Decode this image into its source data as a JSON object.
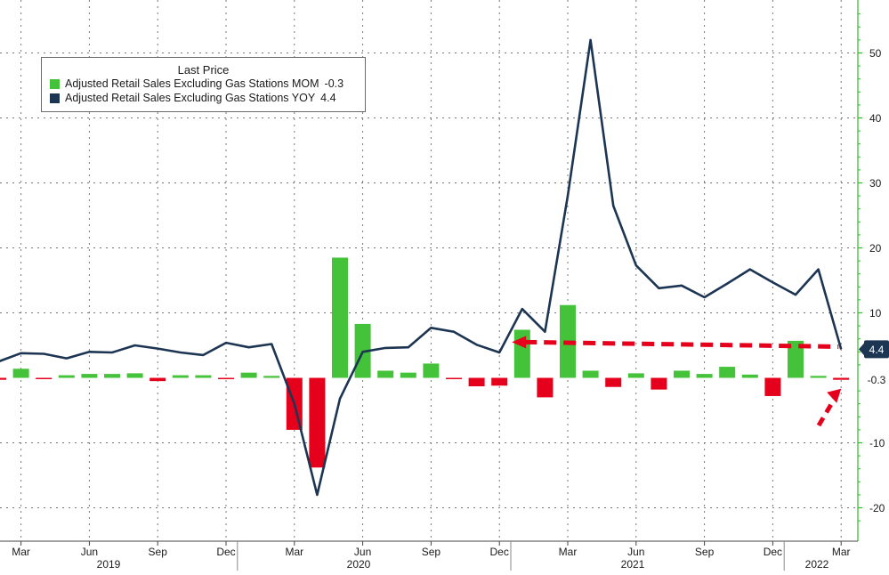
{
  "chart_data": {
    "type": "bar+line",
    "legend": {
      "title": "Last Price",
      "placement": "top-left"
    },
    "x": [
      "2019-02",
      "2019-03",
      "2019-04",
      "2019-05",
      "2019-06",
      "2019-07",
      "2019-08",
      "2019-09",
      "2019-10",
      "2019-11",
      "2019-12",
      "2020-01",
      "2020-02",
      "2020-03",
      "2020-04",
      "2020-05",
      "2020-06",
      "2020-07",
      "2020-08",
      "2020-09",
      "2020-10",
      "2020-11",
      "2020-12",
      "2021-01",
      "2021-02",
      "2021-03",
      "2021-04",
      "2021-05",
      "2021-06",
      "2021-07",
      "2021-08",
      "2021-09",
      "2021-10",
      "2021-11",
      "2021-12",
      "2022-01",
      "2022-02",
      "2022-03"
    ],
    "series": [
      {
        "name": "Adjusted Retail Sales Excluding Gas Stations MOM",
        "last": "-0.3",
        "type": "bar",
        "color_positive": "#44c23a",
        "color_negative": "#e5001b",
        "values": [
          -0.3,
          1.4,
          -0.2,
          0.4,
          0.6,
          0.6,
          0.7,
          -0.5,
          0.4,
          0.4,
          -0.1,
          0.8,
          0.3,
          -8.0,
          -13.8,
          18.5,
          8.3,
          1.1,
          0.8,
          2.2,
          -0.1,
          -1.3,
          -1.2,
          7.4,
          -3.0,
          11.2,
          1.1,
          -1.4,
          0.7,
          -1.8,
          1.1,
          0.6,
          1.7,
          0.5,
          -2.8,
          5.7,
          0.3,
          -0.3
        ]
      },
      {
        "name": "Adjusted Retail Sales Excluding Gas Stations YOY",
        "last": "4.4",
        "type": "line",
        "color": "#1c3553",
        "values": [
          2.5,
          3.8,
          3.7,
          3.0,
          4.0,
          3.9,
          5.0,
          4.5,
          3.9,
          3.5,
          5.4,
          4.7,
          5.2,
          -4.0,
          -18.0,
          -3.2,
          4.0,
          4.6,
          4.7,
          7.7,
          7.1,
          5.1,
          3.9,
          10.6,
          7.1,
          28.0,
          52.0,
          26.5,
          17.3,
          13.8,
          14.2,
          12.4,
          14.5,
          16.7,
          14.7,
          12.8,
          16.7,
          4.4
        ]
      }
    ],
    "x_tick_labels": [
      "Mar",
      "Jun",
      "Sep",
      "Dec",
      "Mar",
      "Jun",
      "Sep",
      "Dec",
      "Mar",
      "Jun",
      "Sep",
      "Dec",
      "Mar"
    ],
    "x_tick_months": [
      "2019-03",
      "2019-06",
      "2019-09",
      "2019-12",
      "2020-03",
      "2020-06",
      "2020-09",
      "2020-12",
      "2021-03",
      "2021-06",
      "2021-09",
      "2021-12",
      "2022-03"
    ],
    "year_labels": [
      "2019",
      "2020",
      "2021",
      "2022"
    ],
    "y_tick_labels": [
      "50",
      "40",
      "30",
      "20",
      "10",
      "-10",
      "-20"
    ],
    "y_ticks": [
      50,
      40,
      30,
      20,
      10,
      -10,
      -20
    ],
    "ylim": [
      -24,
      58
    ],
    "y_axis_position": "right",
    "grid": true,
    "value_labels": [
      "4.4",
      "-0.3"
    ],
    "annotations": [
      "dashed red arrow from Dec 2020 level to Mar 2022 (YOY back to pre-stimulus level)",
      "dashed red arrow pointing to Mar 2022 MOM bar"
    ],
    "colors": {
      "axis": "#2fb82a",
      "grid": "#777777",
      "label_box_bg": "#1c3553",
      "annotation": "#e5001b"
    }
  }
}
